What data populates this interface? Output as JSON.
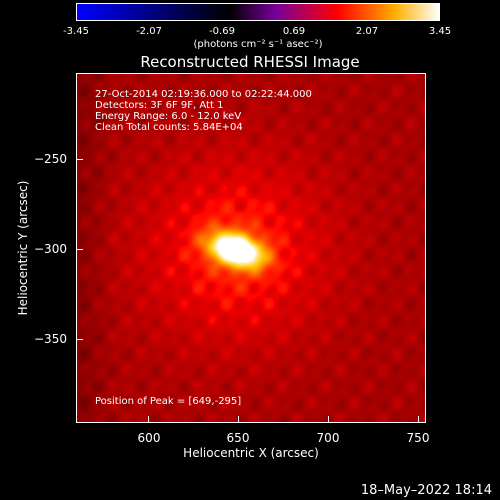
{
  "colorbar": {
    "ticks": [
      "-3.45",
      "-2.07",
      "-0.69",
      "0.69",
      "2.07",
      "3.45"
    ],
    "unit": "(photons cm⁻² s⁻¹ asec⁻²)",
    "colors": [
      "#0000ff",
      "#000000",
      "#7a009a",
      "#ff0000",
      "#ffb000",
      "#ffffff"
    ]
  },
  "plot": {
    "title": "Reconstructed RHESSI Image",
    "info": [
      "27-Oct-2014 02:19:36.000 to 02:22:44.000",
      "Detectors: 3F 6F 9F, Att 1",
      "Energy Range: 6.0 - 12.0 keV",
      "Clean    Total counts: 5.84E+04"
    ],
    "peak_text": "Position of Peak = [649,-295]",
    "x_label": "Heliocentric X (arcsec)",
    "y_label": "Heliocentric Y (arcsec)",
    "x_ticks": [
      {
        "value": 600,
        "label": "600"
      },
      {
        "value": 650,
        "label": "650"
      },
      {
        "value": 700,
        "label": "700"
      },
      {
        "value": 750,
        "label": "750"
      }
    ],
    "y_ticks": [
      {
        "value": -250,
        "label": "−250"
      },
      {
        "value": -300,
        "label": "−300"
      },
      {
        "value": -350,
        "label": "−350"
      }
    ],
    "x_range": [
      560,
      755
    ],
    "y_range": [
      -394,
      -194
    ],
    "peak_x": 649,
    "peak_y": -295
  },
  "footer": {
    "timestamp": "18–May–2022 18:14"
  }
}
